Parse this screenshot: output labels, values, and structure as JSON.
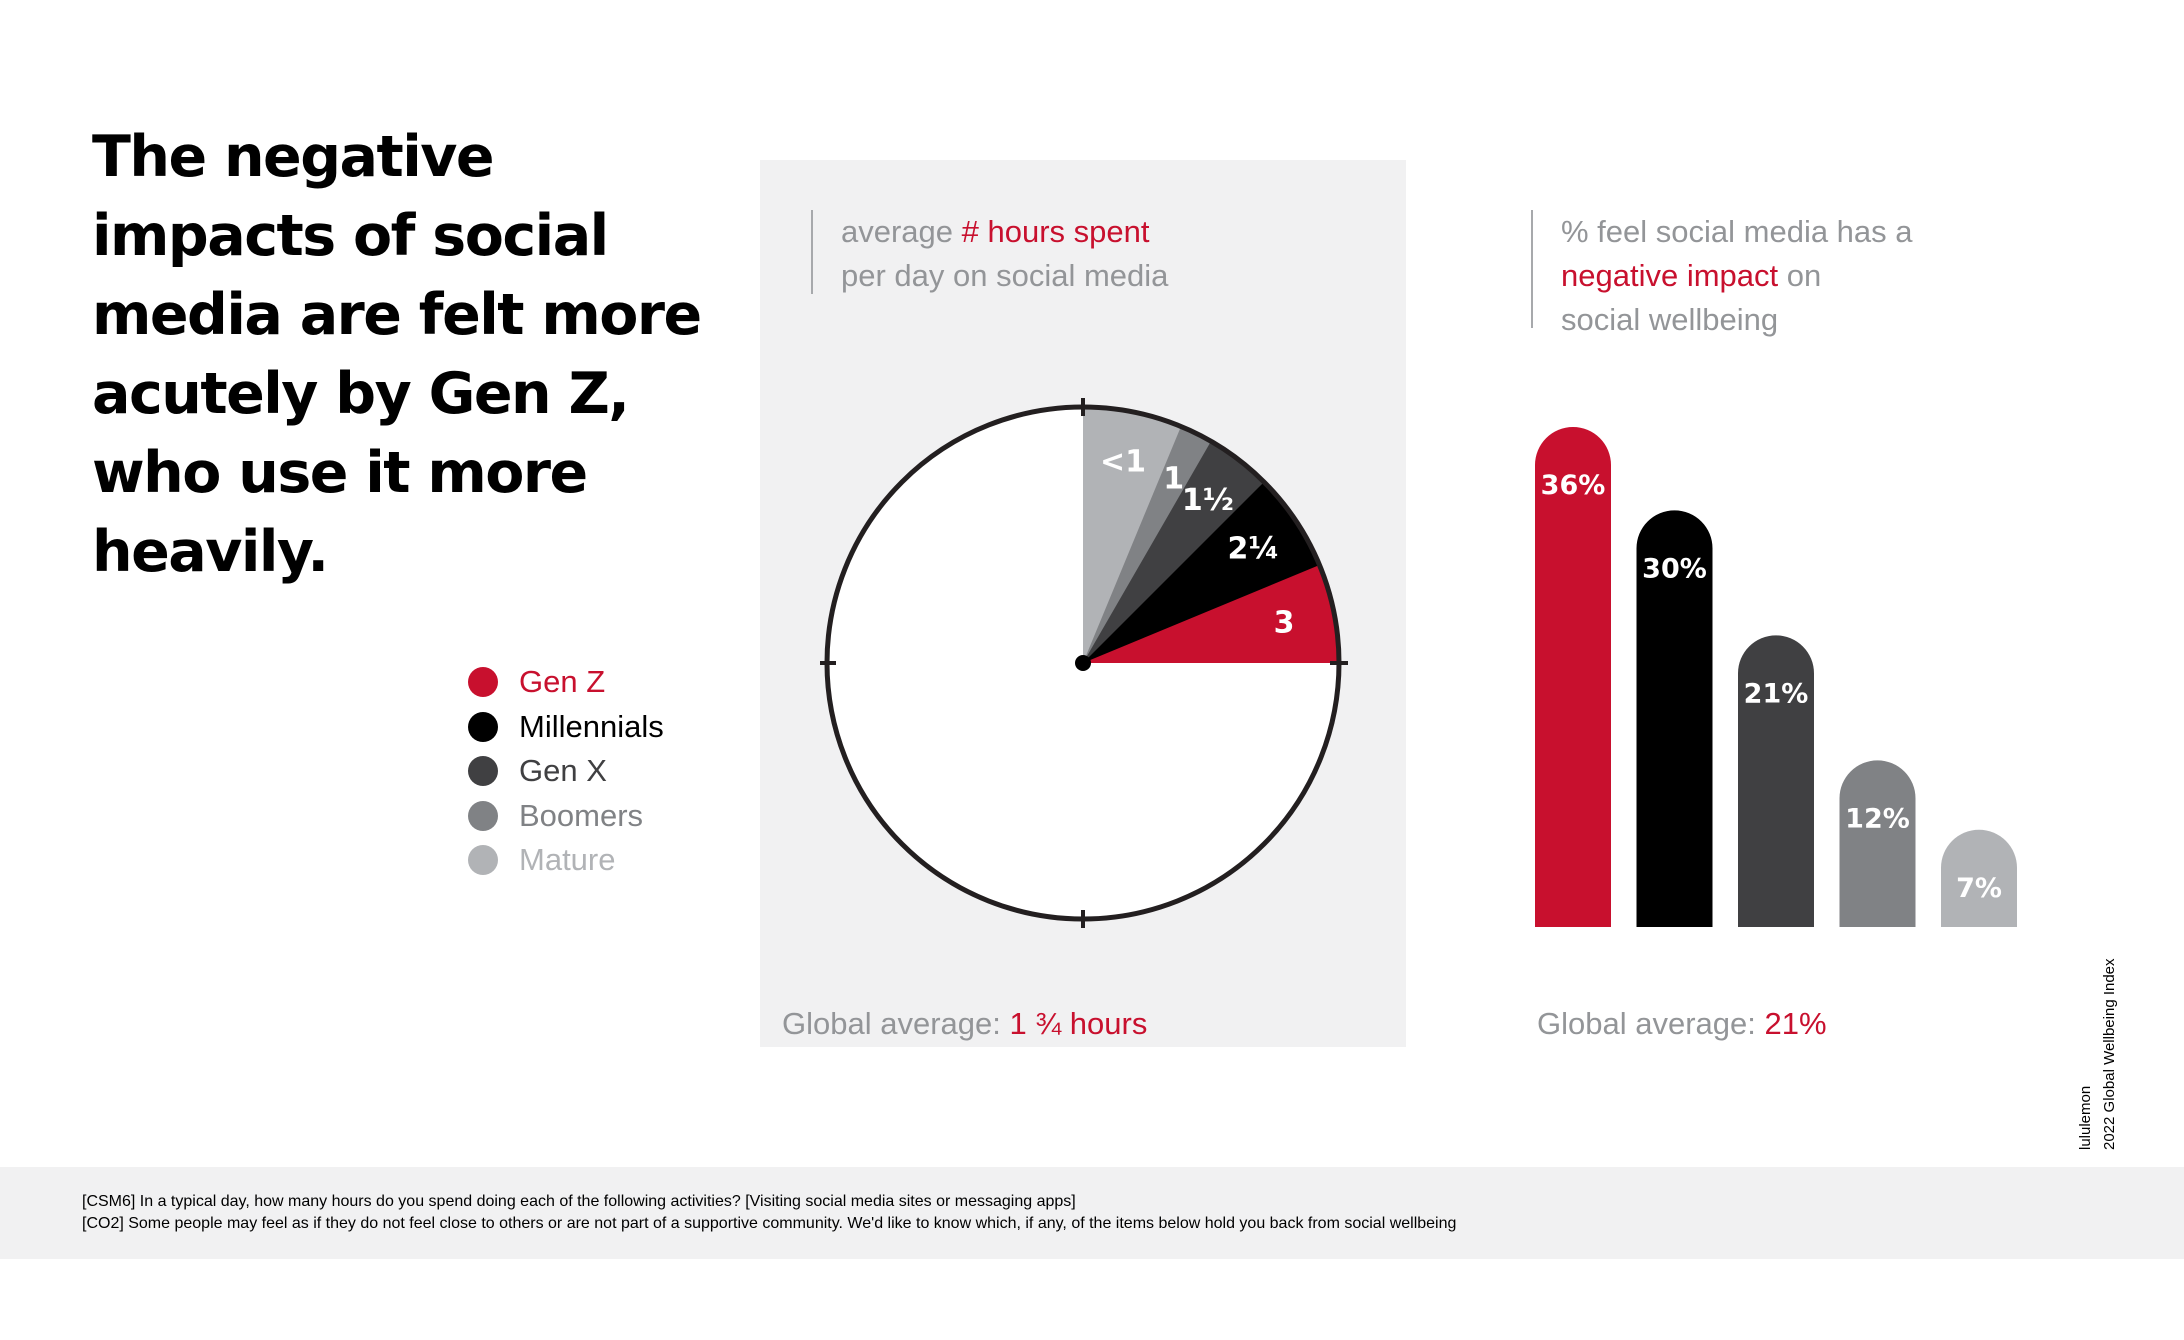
{
  "headline": "The negative impacts of social media are felt more acutely by Gen Z, who use it more heavily.",
  "colors": {
    "gen_z": "#c8102e",
    "millennials": "#000000",
    "gen_x": "#404042",
    "boomers": "#808285",
    "mature": "#b1b3b6",
    "accent": "#c8102e",
    "caption_gray": "#939598"
  },
  "legend": [
    {
      "label": "Gen Z",
      "color": "#c8102e"
    },
    {
      "label": "Millennials",
      "color": "#000000"
    },
    {
      "label": "Gen X",
      "color": "#404042"
    },
    {
      "label": "Boomers",
      "color": "#808285"
    },
    {
      "label": "Mature",
      "color": "#b1b3b6"
    }
  ],
  "pie_caption": {
    "line1_prefix": "average ",
    "line1_highlight": "# hours spent",
    "line2": "per day on social media"
  },
  "pie_global": {
    "prefix": "Global average: ",
    "value": "1 ¾ hours"
  },
  "bar_caption": {
    "line1": "% feel social media has a",
    "line2_highlight": "negative impact",
    "line2_suffix": " on",
    "line3": "social wellbeing"
  },
  "bar_global": {
    "prefix": "Global average: ",
    "value": "21%"
  },
  "chart_data": [
    {
      "type": "pie",
      "title": "average # hours spent per day on social media",
      "unit": "hours (clock face, 12 hours per full circle)",
      "series": [
        {
          "name": "Gen Z",
          "value": 3,
          "label": "3"
        },
        {
          "name": "Millennials",
          "value": 2.25,
          "label": "2¼"
        },
        {
          "name": "Gen X",
          "value": 1.5,
          "label": "1½"
        },
        {
          "name": "Boomers",
          "value": 1,
          "label": "1"
        },
        {
          "name": "Mature",
          "value": 0.75,
          "label": "<1"
        }
      ],
      "full_circle": 12,
      "global_average": "1 ¾ hours"
    },
    {
      "type": "bar",
      "title": "% feel social media has a negative impact on social wellbeing",
      "categories": [
        "Gen Z",
        "Millennials",
        "Gen X",
        "Boomers",
        "Mature"
      ],
      "values": [
        36,
        30,
        21,
        12,
        7
      ],
      "labels": [
        "36%",
        "30%",
        "21%",
        "12%",
        "7%"
      ],
      "ylim": [
        0,
        36
      ],
      "global_average": "21%"
    }
  ],
  "source": {
    "line1": "lululemon",
    "line2": "2022 Global Wellbeing Index"
  },
  "footnotes": [
    "[CSM6] In a typical day, how many hours do you spend doing each  of the following activities?  [Visiting social media sites or messaging apps]",
    "[CO2] Some people may feel as if they do not feel close to others or are not part of a supportive community. We'd like  to know which, if any, of the items below hold you back from social wellbeing"
  ]
}
